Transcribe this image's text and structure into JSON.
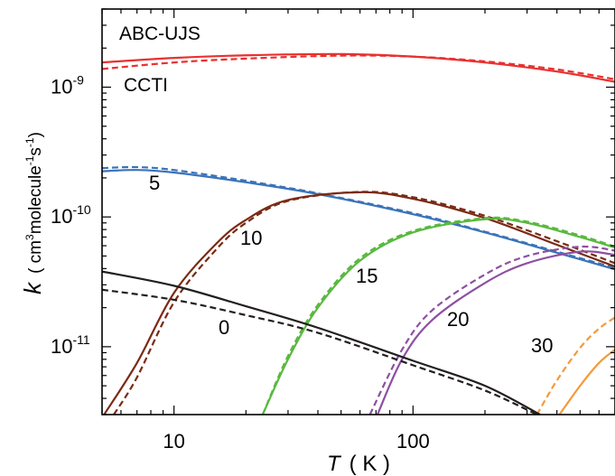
{
  "chart_data": {
    "type": "line",
    "x_scale": "log",
    "y_scale": "log",
    "xlim": [
      5,
      700
    ],
    "ylim": [
      3e-12,
      4e-09
    ],
    "x_ticks": [
      {
        "value": 10,
        "label": "10"
      },
      {
        "value": 100,
        "label": "100"
      }
    ],
    "y_ticks": [
      {
        "value": 1e-11,
        "base": "10",
        "exp": "-11"
      },
      {
        "value": 1e-10,
        "base": "10",
        "exp": "-10"
      },
      {
        "value": 1e-09,
        "base": "10",
        "exp": "-9"
      }
    ],
    "xlabel": {
      "var": "T",
      "unit": "( K )"
    },
    "ylabel": {
      "var": "k",
      "pre": "( cm",
      "s1": "3",
      "mid": "molecule",
      "s2": "-1",
      "mid2": "s",
      "s3": "-1",
      "post": ")"
    },
    "legend": {
      "solid": "ABC-UJS",
      "dashed": "CCTI"
    },
    "series": [
      {
        "curve_label": "",
        "color": "#e8312f",
        "solid": [
          [
            5,
            1.55e-09
          ],
          [
            10,
            1.68e-09
          ],
          [
            20,
            1.76e-09
          ],
          [
            50,
            1.8e-09
          ],
          [
            100,
            1.72e-09
          ],
          [
            200,
            1.55e-09
          ],
          [
            400,
            1.32e-09
          ],
          [
            700,
            1.1e-09
          ]
        ],
        "dashed": [
          [
            5,
            1.38e-09
          ],
          [
            10,
            1.55e-09
          ],
          [
            20,
            1.66e-09
          ],
          [
            50,
            1.75e-09
          ],
          [
            100,
            1.72e-09
          ],
          [
            200,
            1.58e-09
          ],
          [
            400,
            1.37e-09
          ],
          [
            700,
            1.15e-09
          ]
        ]
      },
      {
        "curve_label": "5",
        "color": "#3a73b9",
        "solid": [
          [
            5,
            2.25e-10
          ],
          [
            7,
            2.3e-10
          ],
          [
            10,
            2.2e-10
          ],
          [
            20,
            1.85e-10
          ],
          [
            40,
            1.5e-10
          ],
          [
            100,
            1.05e-10
          ],
          [
            200,
            7.6e-11
          ],
          [
            400,
            5.3e-11
          ],
          [
            700,
            3.95e-11
          ]
        ],
        "dashed": [
          [
            5,
            2.38e-10
          ],
          [
            7,
            2.42e-10
          ],
          [
            10,
            2.3e-10
          ],
          [
            20,
            1.9e-10
          ],
          [
            40,
            1.52e-10
          ],
          [
            100,
            1.07e-10
          ],
          [
            200,
            7.7e-11
          ],
          [
            400,
            5.4e-11
          ],
          [
            700,
            4.05e-11
          ]
        ]
      },
      {
        "curve_label": "10",
        "color": "#7a2a14",
        "solid": [
          [
            5.1,
            3e-12
          ],
          [
            7,
            7.5e-12
          ],
          [
            10,
            2.6e-11
          ],
          [
            15,
            6.2e-11
          ],
          [
            20,
            9.5e-11
          ],
          [
            30,
            1.35e-10
          ],
          [
            60,
            1.55e-10
          ],
          [
            100,
            1.38e-10
          ],
          [
            200,
            9.8e-11
          ],
          [
            400,
            6.1e-11
          ],
          [
            700,
            4.15e-11
          ]
        ],
        "dashed": [
          [
            5.6,
            3e-12
          ],
          [
            7,
            5.8e-12
          ],
          [
            10,
            2.2e-11
          ],
          [
            15,
            5.6e-11
          ],
          [
            20,
            9e-11
          ],
          [
            30,
            1.33e-10
          ],
          [
            60,
            1.56e-10
          ],
          [
            100,
            1.42e-10
          ],
          [
            200,
            1.02e-10
          ],
          [
            400,
            6.5e-11
          ],
          [
            700,
            4.4e-11
          ]
        ]
      },
      {
        "curve_label": "15",
        "color": "#59b93e",
        "solid": [
          [
            23.5,
            3e-12
          ],
          [
            30,
            8e-12
          ],
          [
            40,
            2e-11
          ],
          [
            60,
            4.6e-11
          ],
          [
            100,
            7.6e-11
          ],
          [
            200,
            9.6e-11
          ],
          [
            300,
            9e-11
          ],
          [
            500,
            7e-11
          ],
          [
            700,
            5.8e-11
          ]
        ],
        "dashed": [
          [
            23.5,
            3e-12
          ],
          [
            30,
            8.5e-12
          ],
          [
            40,
            2.1e-11
          ],
          [
            60,
            4.8e-11
          ],
          [
            100,
            7.8e-11
          ],
          [
            200,
            9.8e-11
          ],
          [
            300,
            9.2e-11
          ],
          [
            500,
            7.2e-11
          ],
          [
            700,
            5.9e-11
          ]
        ]
      },
      {
        "curve_label": "20",
        "color": "#8e4fa3",
        "solid": [
          [
            71,
            3e-12
          ],
          [
            90,
            8e-12
          ],
          [
            120,
            1.6e-11
          ],
          [
            200,
            3.1e-11
          ],
          [
            300,
            4.4e-11
          ],
          [
            500,
            5.4e-11
          ],
          [
            700,
            5.1e-11
          ]
        ],
        "dashed": [
          [
            66,
            3e-12
          ],
          [
            90,
            9.5e-12
          ],
          [
            120,
            1.9e-11
          ],
          [
            200,
            3.6e-11
          ],
          [
            300,
            5e-11
          ],
          [
            500,
            5.9e-11
          ],
          [
            700,
            5.5e-11
          ]
        ]
      },
      {
        "curve_label": "30",
        "color": "#f39a3b",
        "solid": [
          [
            410,
            3e-12
          ],
          [
            500,
            5e-12
          ],
          [
            600,
            7.5e-12
          ],
          [
            700,
            9.5e-12
          ]
        ],
        "dashed": [
          [
            330,
            3e-12
          ],
          [
            400,
            5.5e-12
          ],
          [
            500,
            9.8e-12
          ],
          [
            600,
            1.38e-11
          ],
          [
            700,
            1.68e-11
          ]
        ]
      },
      {
        "curve_label": "0",
        "color": "#231f20",
        "solid": [
          [
            5,
            3.8e-11
          ],
          [
            10,
            2.95e-11
          ],
          [
            20,
            2.05e-11
          ],
          [
            40,
            1.4e-11
          ],
          [
            100,
            7.8e-12
          ],
          [
            200,
            5e-12
          ],
          [
            340,
            3e-12
          ]
        ],
        "dashed": [
          [
            5,
            2.75e-11
          ],
          [
            10,
            2.3e-11
          ],
          [
            20,
            1.75e-11
          ],
          [
            40,
            1.28e-11
          ],
          [
            100,
            7.2e-12
          ],
          [
            200,
            4.6e-12
          ],
          [
            330,
            3e-12
          ]
        ]
      }
    ]
  }
}
